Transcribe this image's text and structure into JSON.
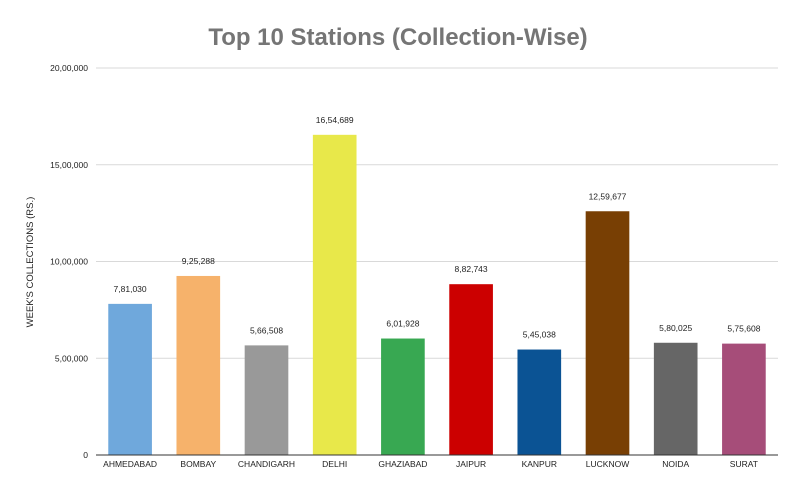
{
  "chart_data": {
    "type": "bar",
    "title": "Top 10 Stations (Collection-Wise)",
    "xlabel": "",
    "ylabel": "WEEK'S COLLECTIONS (RS.)",
    "categories": [
      "AHMEDABAD",
      "BOMBAY",
      "CHANDIGARH",
      "DELHI",
      "GHAZIABAD",
      "JAIPUR",
      "KANPUR",
      "LUCKNOW",
      "NOIDA",
      "SURAT"
    ],
    "values": [
      781030,
      925288,
      566508,
      1654689,
      601928,
      882743,
      545038,
      1259677,
      580025,
      575608
    ],
    "value_labels": [
      "7,81,030",
      "9,25,288",
      "5,66,508",
      "16,54,689",
      "6,01,928",
      "8,82,743",
      "5,45,038",
      "12,59,677",
      "5,80,025",
      "5,75,608"
    ],
    "colors": [
      "#6fa8dc",
      "#f6b26b",
      "#999999",
      "#e8e84a",
      "#38a852",
      "#cc0000",
      "#0b5394",
      "#783f04",
      "#666666",
      "#a64d79"
    ],
    "ylim": [
      0,
      2000000
    ],
    "yticks": [
      0,
      500000,
      1000000,
      1500000,
      2000000
    ],
    "ytick_labels": [
      "0",
      "5,00,000",
      "10,00,000",
      "15,00,000",
      "20,00,000"
    ],
    "grid": true,
    "legend": "none"
  }
}
